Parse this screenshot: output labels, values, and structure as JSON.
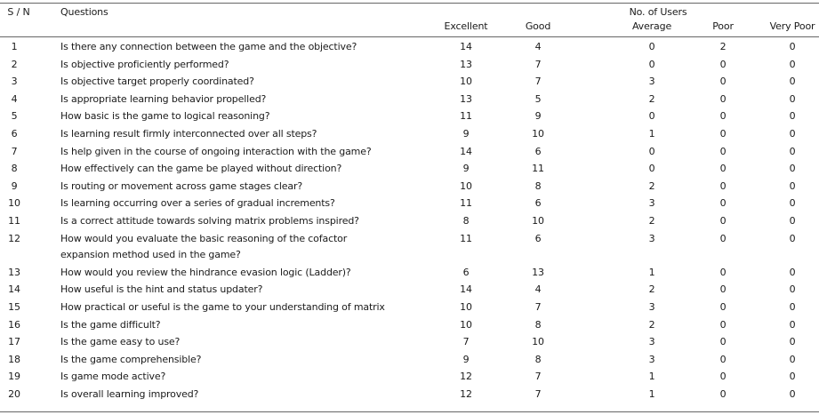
{
  "table": {
    "headers": {
      "sn": "S / N",
      "question": "Questions",
      "group": "No. of Users",
      "excellent": "Excellent",
      "good": "Good",
      "average": "Average",
      "poor": "Poor",
      "very_poor": "Very Poor"
    },
    "rows": [
      {
        "sn": "1",
        "q": [
          "Is there any connection between the game and the objective?"
        ],
        "excellent": "14",
        "good": "4",
        "average": "0",
        "poor": "2",
        "very_poor": "0"
      },
      {
        "sn": "2",
        "q": [
          "Is objective proficiently performed?"
        ],
        "excellent": "13",
        "good": "7",
        "average": "0",
        "poor": "0",
        "very_poor": "0"
      },
      {
        "sn": "3",
        "q": [
          "Is objective target properly coordinated?"
        ],
        "excellent": "10",
        "good": "7",
        "average": "3",
        "poor": "0",
        "very_poor": "0"
      },
      {
        "sn": "4",
        "q": [
          "Is appropriate learning behavior propelled?"
        ],
        "excellent": "13",
        "good": "5",
        "average": "2",
        "poor": "0",
        "very_poor": "0"
      },
      {
        "sn": "5",
        "q": [
          "How basic is the game to logical reasoning?"
        ],
        "excellent": "11",
        "good": "9",
        "average": "0",
        "poor": "0",
        "very_poor": "0"
      },
      {
        "sn": "6",
        "q": [
          "Is learning result firmly interconnected over all steps?"
        ],
        "excellent": "9",
        "good": "10",
        "average": "1",
        "poor": "0",
        "very_poor": "0"
      },
      {
        "sn": "7",
        "q": [
          "Is help given in the course of ongoing interaction with the game?"
        ],
        "excellent": "14",
        "good": "6",
        "average": "0",
        "poor": "0",
        "very_poor": "0"
      },
      {
        "sn": "8",
        "q": [
          "How effectively can the game be played without direction?"
        ],
        "excellent": "9",
        "good": "11",
        "average": "0",
        "poor": "0",
        "very_poor": "0"
      },
      {
        "sn": "9",
        "q": [
          "Is routing or movement across game stages clear?"
        ],
        "excellent": "10",
        "good": "8",
        "average": "2",
        "poor": "0",
        "very_poor": "0"
      },
      {
        "sn": "10",
        "q": [
          "Is learning occurring over a series of gradual increments?"
        ],
        "excellent": "11",
        "good": "6",
        "average": "3",
        "poor": "0",
        "very_poor": "0"
      },
      {
        "sn": "11",
        "q": [
          "Is a correct attitude towards solving matrix problems inspired?"
        ],
        "excellent": "8",
        "good": "10",
        "average": "2",
        "poor": "0",
        "very_poor": "0"
      },
      {
        "sn": "12",
        "q": [
          "How would you evaluate the basic reasoning of the cofactor",
          "expansion method used in the game?"
        ],
        "excellent": "11",
        "good": "6",
        "average": "3",
        "poor": "0",
        "very_poor": "0"
      },
      {
        "sn": "13",
        "q": [
          "How would you review the hindrance evasion logic (Ladder)?"
        ],
        "excellent": "6",
        "good": "13",
        "average": "1",
        "poor": "0",
        "very_poor": "0"
      },
      {
        "sn": "14",
        "q": [
          "How useful is the hint and status updater?"
        ],
        "excellent": "14",
        "good": "4",
        "average": "2",
        "poor": "0",
        "very_poor": "0"
      },
      {
        "sn": "15",
        "q": [
          "How practical or useful is the game to your understanding of matrix"
        ],
        "excellent": "10",
        "good": "7",
        "average": "3",
        "poor": "0",
        "very_poor": "0"
      },
      {
        "sn": "16",
        "q": [
          "Is the game difficult?"
        ],
        "excellent": "10",
        "good": "8",
        "average": "2",
        "poor": "0",
        "very_poor": "0"
      },
      {
        "sn": "17",
        "q": [
          "Is the game easy to use?"
        ],
        "excellent": "7",
        "good": "10",
        "average": "3",
        "poor": "0",
        "very_poor": "0"
      },
      {
        "sn": "18",
        "q": [
          "Is the game comprehensible?"
        ],
        "excellent": "9",
        "good": "8",
        "average": "3",
        "poor": "0",
        "very_poor": "0"
      },
      {
        "sn": "19",
        "q": [
          "Is game mode active?"
        ],
        "excellent": "12",
        "good": "7",
        "average": "1",
        "poor": "0",
        "very_poor": "0"
      },
      {
        "sn": "20",
        "q": [
          "Is overall learning improved?"
        ],
        "excellent": "12",
        "good": "7",
        "average": "1",
        "poor": "0",
        "very_poor": "0"
      }
    ]
  }
}
